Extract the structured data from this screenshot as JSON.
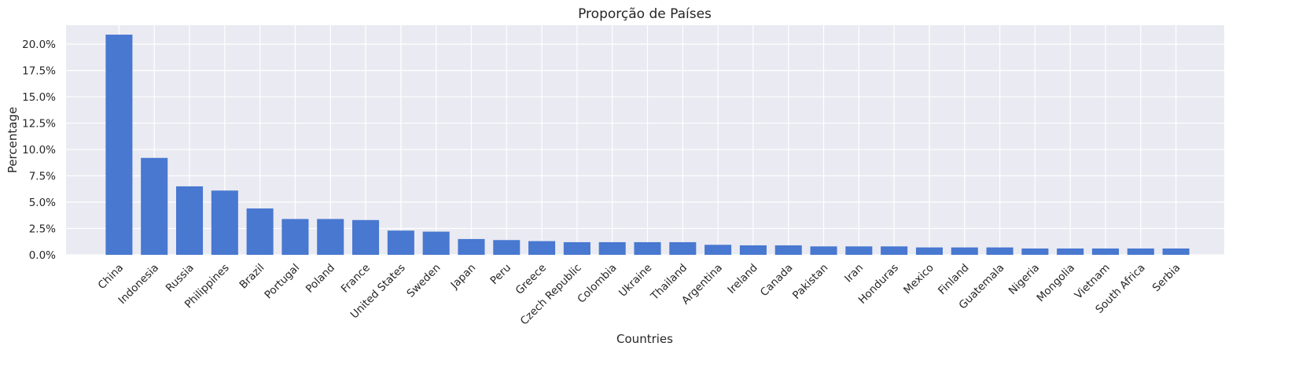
{
  "chart_data": {
    "type": "bar",
    "title": "Proporção de Países",
    "xlabel": "Countries",
    "ylabel": "Percentage",
    "ylim": [
      0,
      21.8
    ],
    "yticks": [
      "0.0%",
      "2.5%",
      "5.0%",
      "7.5%",
      "10.0%",
      "12.5%",
      "15.0%",
      "17.5%",
      "20.0%"
    ],
    "ytick_values": [
      0,
      2.5,
      5,
      7.5,
      10,
      12.5,
      15,
      17.5,
      20
    ],
    "grid": true,
    "categories": [
      "China",
      "Indonesia",
      "Russia",
      "Philippines",
      "Brazil",
      "Portugal",
      "Poland",
      "France",
      "United States",
      "Sweden",
      "Japan",
      "Peru",
      "Greece",
      "Czech Republic",
      "Colombia",
      "Ukraine",
      "Thailand",
      "Argentina",
      "Ireland",
      "Canada",
      "Pakistan",
      "Iran",
      "Honduras",
      "Mexico",
      "Finland",
      "Guatemala",
      "Nigeria",
      "Mongolia",
      "Vietnam",
      "South Africa",
      "Serbia"
    ],
    "values": [
      20.9,
      9.2,
      6.5,
      6.1,
      4.4,
      3.4,
      3.4,
      3.3,
      2.3,
      2.2,
      1.5,
      1.4,
      1.3,
      1.2,
      1.2,
      1.2,
      1.2,
      0.95,
      0.9,
      0.9,
      0.8,
      0.8,
      0.8,
      0.7,
      0.7,
      0.7,
      0.6,
      0.6,
      0.6,
      0.6,
      0.6
    ],
    "colors": {
      "bar": "#4878d0",
      "plot_background": "#eaeaf2",
      "grid": "#ffffff"
    }
  }
}
